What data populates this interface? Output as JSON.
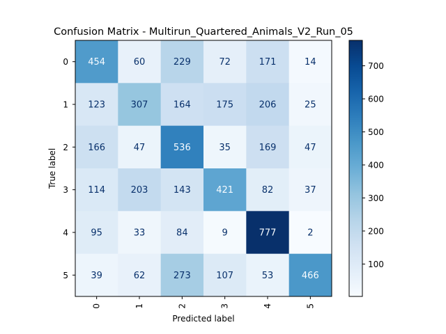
{
  "chart_data": {
    "type": "heatmap",
    "title": "Confusion Matrix - Multirun_Quartered_Animals_V2_Run_05",
    "xlabel": "Predicted label",
    "ylabel": "True label",
    "x_categories": [
      "0",
      "1",
      "2",
      "3",
      "4",
      "5"
    ],
    "y_categories": [
      "0",
      "1",
      "2",
      "3",
      "4",
      "5"
    ],
    "values": [
      [
        454,
        60,
        229,
        72,
        171,
        14
      ],
      [
        123,
        307,
        164,
        175,
        206,
        25
      ],
      [
        166,
        47,
        536,
        35,
        169,
        47
      ],
      [
        114,
        203,
        143,
        421,
        82,
        37
      ],
      [
        95,
        33,
        84,
        9,
        777,
        2
      ],
      [
        39,
        62,
        273,
        107,
        53,
        466
      ]
    ],
    "colorbar": {
      "colormap": "Blues",
      "range": [
        2,
        777
      ],
      "ticks": [
        100,
        200,
        300,
        400,
        500,
        600,
        700
      ]
    }
  }
}
